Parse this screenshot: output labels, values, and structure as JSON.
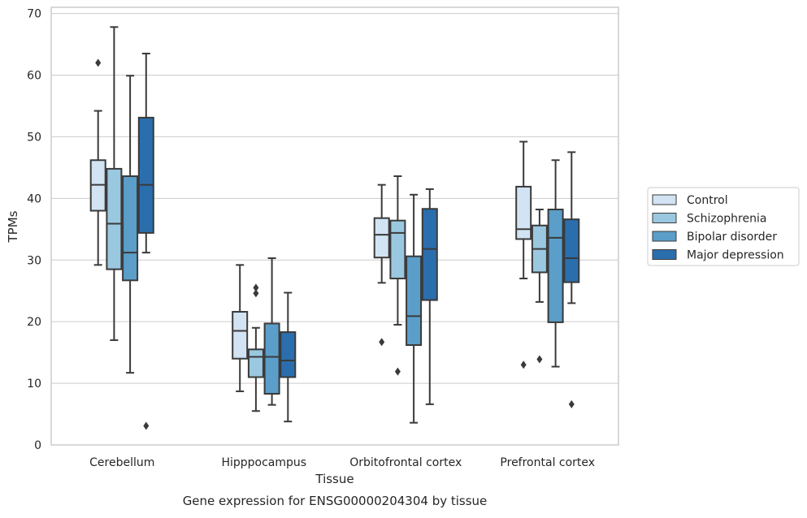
{
  "chart_data": {
    "type": "box",
    "title": "",
    "caption": "Gene expression for ENSG00000204304 by tissue",
    "xlabel": "Tissue",
    "ylabel": "TPMs",
    "ylim": [
      0,
      71
    ],
    "yticks": [
      0,
      10,
      20,
      30,
      40,
      50,
      60,
      70
    ],
    "grid": "horizontal",
    "legend_position": "right",
    "categories": [
      "Cerebellum",
      "Hipppocampus",
      "Orbitofrontal cortex",
      "Prefrontal cortex"
    ],
    "series": [
      {
        "name": "Control",
        "color": "#d2e3f3",
        "boxes": [
          {
            "whislo": 29.2,
            "q1": 38.0,
            "med": 42.2,
            "q3": 46.2,
            "whishi": 54.2,
            "fliers": [
              62.0
            ]
          },
          {
            "whislo": 8.7,
            "q1": 14.0,
            "med": 18.5,
            "q3": 21.6,
            "whishi": 29.2,
            "fliers": []
          },
          {
            "whislo": 26.3,
            "q1": 30.4,
            "med": 34.1,
            "q3": 36.8,
            "whishi": 42.2,
            "fliers": [
              16.7
            ]
          },
          {
            "whislo": 27.0,
            "q1": 33.4,
            "med": 35.0,
            "q3": 41.9,
            "whishi": 49.2,
            "fliers": [
              13.0
            ]
          }
        ]
      },
      {
        "name": "Schizophrenia",
        "color": "#9ac8e0",
        "boxes": [
          {
            "whislo": 17.0,
            "q1": 28.5,
            "med": 35.9,
            "q3": 44.8,
            "whishi": 67.8,
            "fliers": []
          },
          {
            "whislo": 5.5,
            "q1": 11.0,
            "med": 14.3,
            "q3": 15.5,
            "whishi": 19.0,
            "fliers": [
              24.6,
              25.5
            ]
          },
          {
            "whislo": 19.5,
            "q1": 27.0,
            "med": 34.4,
            "q3": 36.4,
            "whishi": 43.6,
            "fliers": [
              11.9
            ]
          },
          {
            "whislo": 23.2,
            "q1": 28.0,
            "med": 31.8,
            "q3": 35.6,
            "whishi": 38.2,
            "fliers": [
              13.9
            ]
          }
        ]
      },
      {
        "name": "Bipolar disorder",
        "color": "#5b9ec9",
        "boxes": [
          {
            "whislo": 11.7,
            "q1": 26.7,
            "med": 31.2,
            "q3": 43.6,
            "whishi": 59.9,
            "fliers": []
          },
          {
            "whislo": 6.5,
            "q1": 8.3,
            "med": 14.3,
            "q3": 19.7,
            "whishi": 30.3,
            "fliers": []
          },
          {
            "whislo": 3.6,
            "q1": 16.2,
            "med": 20.9,
            "q3": 30.6,
            "whishi": 40.6,
            "fliers": []
          },
          {
            "whislo": 12.7,
            "q1": 19.9,
            "med": 33.6,
            "q3": 38.2,
            "whishi": 46.2,
            "fliers": []
          }
        ]
      },
      {
        "name": "Major depression",
        "color": "#2b6ead",
        "boxes": [
          {
            "whislo": 31.2,
            "q1": 34.4,
            "med": 42.2,
            "q3": 53.1,
            "whishi": 63.5,
            "fliers": [
              3.1
            ]
          },
          {
            "whislo": 3.8,
            "q1": 11.0,
            "med": 13.7,
            "q3": 18.3,
            "whishi": 24.7,
            "fliers": []
          },
          {
            "whislo": 6.6,
            "q1": 23.5,
            "med": 31.8,
            "q3": 38.3,
            "whishi": 41.5,
            "fliers": []
          },
          {
            "whislo": 23.0,
            "q1": 26.4,
            "med": 30.3,
            "q3": 36.6,
            "whishi": 47.5,
            "fliers": [
              6.6
            ]
          }
        ]
      }
    ]
  }
}
